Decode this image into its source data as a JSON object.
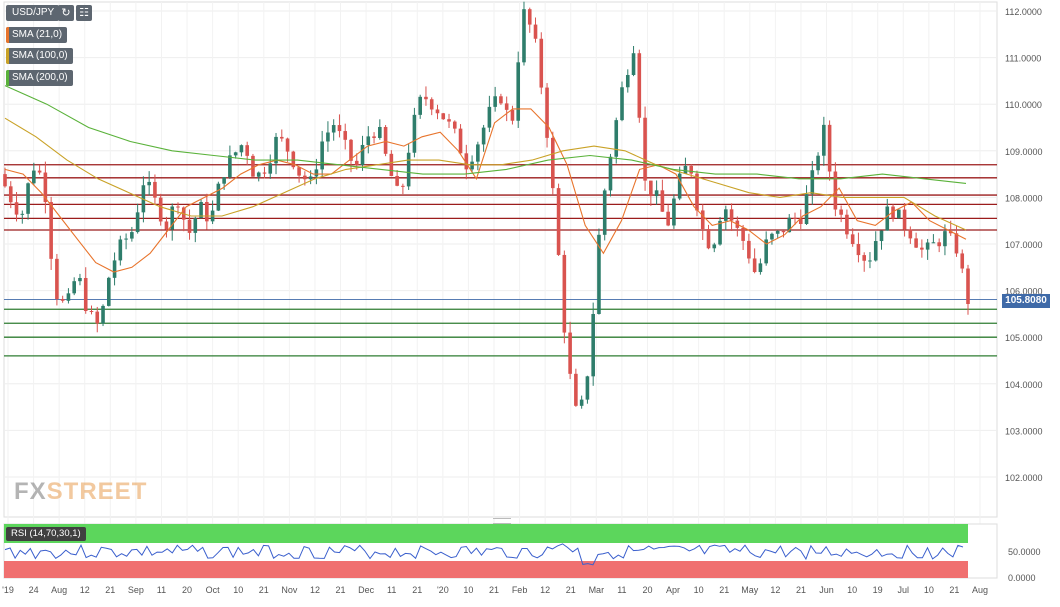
{
  "symbol": "USD/JPY",
  "indicators": [
    {
      "label": "SMA (21,0)",
      "color": "#e8742c"
    },
    {
      "label": "SMA (100,0)",
      "color": "#c9a227"
    },
    {
      "label": "SMA (200,0)",
      "color": "#5ab23a"
    }
  ],
  "rsi_label": "RSI (14,70,30,1)",
  "current_price": "105.8080",
  "watermark": {
    "fx": "FX",
    "street": "STREET"
  },
  "colors": {
    "up": "#2e7d6b",
    "down": "#d9534f",
    "resistance": "#9b1c1c",
    "support": "#2f7d32",
    "sma21": "#e8742c",
    "sma100": "#c9a227",
    "sma200": "#5ab23a",
    "rsi": "#3a5fcd",
    "rsi_over": "#5cd65c",
    "rsi_under": "#f07070"
  },
  "chart_data": {
    "type": "candlestick",
    "title": "USD/JPY",
    "ylim": [
      101.0,
      112.2
    ],
    "yticks": [
      "112.0000",
      "111.0000",
      "110.0000",
      "109.0000",
      "108.0000",
      "107.0000",
      "106.0000",
      "105.0000",
      "104.0000",
      "103.0000",
      "102.0000"
    ],
    "xticks": [
      "'19",
      "24",
      "Aug",
      "12",
      "21",
      "Sep",
      "11",
      "20",
      "Oct",
      "10",
      "21",
      "Nov",
      "12",
      "21",
      "Dec",
      "11",
      "21",
      "'20",
      "10",
      "21",
      "Feb",
      "12",
      "21",
      "Mar",
      "11",
      "20",
      "Apr",
      "10",
      "21",
      "May",
      "12",
      "21",
      "Jun",
      "10",
      "19",
      "Jul",
      "10",
      "21",
      "Aug"
    ],
    "resistance_levels": [
      108.7,
      108.42,
      108.05,
      107.85,
      107.55,
      107.3
    ],
    "support_levels": [
      105.6,
      105.3,
      105.0,
      104.6
    ],
    "current_level": 105.808,
    "price_path": [
      108.5,
      108.0,
      107.6,
      108.7,
      108.4,
      106.0,
      105.6,
      106.4,
      105.5,
      105.2,
      106.5,
      107.0,
      107.3,
      108.4,
      107.9,
      107.4,
      108.0,
      107.2,
      107.8,
      107.5,
      108.5,
      108.9,
      109.2,
      108.4,
      108.7,
      109.3,
      109.0,
      108.5,
      108.3,
      109.2,
      109.6,
      109.1,
      108.6,
      109.3,
      109.5,
      108.6,
      107.9,
      109.4,
      110.2,
      110.0,
      109.7,
      109.3,
      108.7,
      109.2,
      109.8,
      110.2,
      109.5,
      112.0,
      111.5,
      109.9,
      107.4,
      104.5,
      103.1,
      104.5,
      107.6,
      109.1,
      110.4,
      111.3,
      108.3,
      108.0,
      107.4,
      108.3,
      108.8,
      107.4,
      106.9,
      107.9,
      107.4,
      107.0,
      106.3,
      107.1,
      107.2,
      107.5,
      107.6,
      108.4,
      109.5,
      107.9,
      107.4,
      107.0,
      106.6,
      107.3,
      107.8,
      107.5,
      107.2,
      106.8,
      107.0,
      107.2,
      106.9,
      105.8
    ],
    "sma_21": [
      108.6,
      108.5,
      108.1,
      107.6,
      107.1,
      106.6,
      106.4,
      106.5,
      106.8,
      107.3,
      107.8,
      108.0,
      108.2,
      108.5,
      108.7,
      108.8,
      108.7,
      108.5,
      108.5,
      108.8,
      109.1,
      109.2,
      109.1,
      109.3,
      109.4,
      109.0,
      108.4,
      109.6,
      109.9,
      109.9,
      109.5,
      108.7,
      107.4,
      106.8,
      107.5,
      108.6,
      108.7,
      108.5,
      107.8,
      107.4,
      107.5,
      107.3,
      107.0,
      107.2,
      107.6,
      107.8,
      108.2,
      107.5,
      107.4,
      107.7,
      107.9,
      107.5,
      107.3,
      107.1
    ],
    "sma_100": [
      109.7,
      109.3,
      108.8,
      108.4,
      108.1,
      107.8,
      107.6,
      107.6,
      107.8,
      108.1,
      108.4,
      108.6,
      108.7,
      108.8,
      108.8,
      108.7,
      108.7,
      108.8,
      109.0,
      109.1,
      109.0,
      108.7,
      108.5,
      108.3,
      108.1,
      108.0,
      108.1,
      108.0,
      108.0,
      108.0,
      107.6,
      107.3
    ],
    "sma_200": [
      110.4,
      110.0,
      109.5,
      109.2,
      109.0,
      108.9,
      108.8,
      108.8,
      108.7,
      108.6,
      108.5,
      108.5,
      108.6,
      108.8,
      108.9,
      108.8,
      108.6,
      108.5,
      108.5,
      108.4,
      108.4,
      108.5,
      108.4,
      108.3
    ],
    "rsi": {
      "levels": [
        "50.0000",
        "0.0000"
      ],
      "ylim": [
        0,
        100
      ],
      "overbought": 70,
      "oversold": 30
    }
  }
}
